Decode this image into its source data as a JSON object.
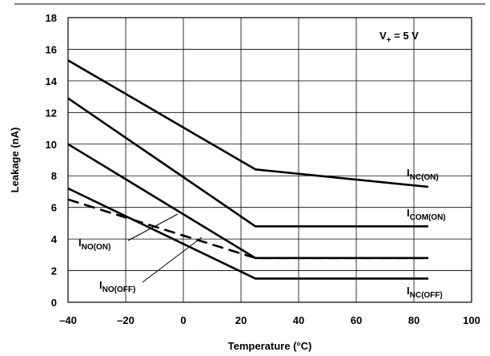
{
  "chart_data": {
    "type": "line",
    "xlabel": "Temperature (°C)",
    "ylabel": "Leakage (nA)",
    "xlim": [
      -40,
      100
    ],
    "ylim": [
      0,
      18
    ],
    "xticks": [
      -40,
      -20,
      0,
      20,
      40,
      60,
      80,
      100
    ],
    "yticks": [
      0,
      2,
      4,
      6,
      8,
      10,
      12,
      14,
      16,
      18
    ],
    "xtick_labels": [
      "–40",
      "–20",
      "0",
      "20",
      "40",
      "60",
      "80",
      "100"
    ],
    "ytick_labels": [
      "0",
      "2",
      "4",
      "6",
      "8",
      "10",
      "12",
      "14",
      "16",
      "18"
    ],
    "grid": true,
    "annotation": {
      "main": "V",
      "sub": "+",
      "rest": " = 5 V"
    },
    "series": [
      {
        "key": "inc_on",
        "label_main": "I",
        "label_sub": "NC(ON)",
        "style": "solid",
        "x": [
          -40,
          25,
          85
        ],
        "y": [
          15.3,
          8.4,
          7.3
        ]
      },
      {
        "key": "icom_on",
        "label_main": "I",
        "label_sub": "COM(ON)",
        "style": "solid",
        "x": [
          -40,
          25,
          85
        ],
        "y": [
          12.9,
          4.8,
          4.8
        ]
      },
      {
        "key": "ino_on",
        "label_main": "I",
        "label_sub": "NO(ON)",
        "style": "solid",
        "x": [
          -40,
          25,
          85
        ],
        "y": [
          10.0,
          2.8,
          2.8
        ]
      },
      {
        "key": "ino_off",
        "label_main": "I",
        "label_sub": "NO(OFF)",
        "style": "dashed",
        "x": [
          -40,
          25,
          85
        ],
        "y": [
          6.5,
          2.8,
          2.8
        ]
      },
      {
        "key": "inc_off",
        "label_main": "I",
        "label_sub": "NC(OFF)",
        "style": "solid",
        "x": [
          -40,
          25,
          85
        ],
        "y": [
          7.2,
          1.5,
          1.5
        ]
      }
    ]
  }
}
